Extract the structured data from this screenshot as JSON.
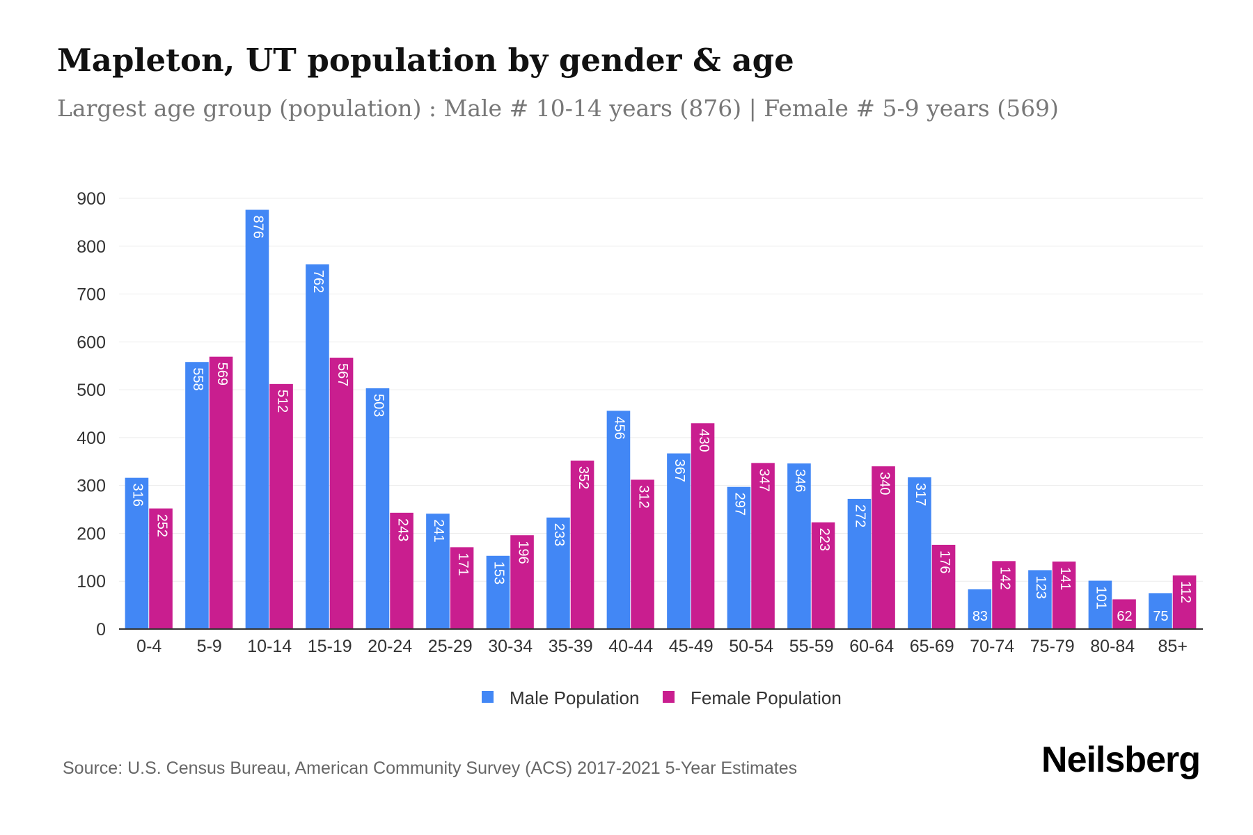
{
  "title": "Mapleton, UT population by gender & age",
  "subtitle": "Largest age group (population) : Male # 10-14 years (876) | Female # 5-9 years (569)",
  "source": "Source: U.S. Census Bureau, American Community Survey (ACS) 2017-2021 5-Year Estimates",
  "logo": "Neilsberg",
  "chart_data": {
    "type": "bar",
    "categories": [
      "0-4",
      "5-9",
      "10-14",
      "15-19",
      "20-24",
      "25-29",
      "30-34",
      "35-39",
      "40-44",
      "45-49",
      "50-54",
      "55-59",
      "60-64",
      "65-69",
      "70-74",
      "75-79",
      "80-84",
      "85+"
    ],
    "series": [
      {
        "name": "Male Population",
        "color": "#4287f5",
        "values": [
          316,
          558,
          876,
          762,
          503,
          241,
          153,
          233,
          456,
          367,
          297,
          346,
          272,
          317,
          83,
          123,
          101,
          75
        ]
      },
      {
        "name": "Female Population",
        "color": "#c91e8f",
        "values": [
          252,
          569,
          512,
          567,
          243,
          171,
          196,
          352,
          312,
          430,
          347,
          223,
          340,
          176,
          142,
          141,
          62,
          112
        ]
      }
    ],
    "ylim": [
      0,
      900
    ],
    "yticks": [
      0,
      100,
      200,
      300,
      400,
      500,
      600,
      700,
      800,
      900
    ],
    "grid": true,
    "legend": "bottom-center"
  }
}
